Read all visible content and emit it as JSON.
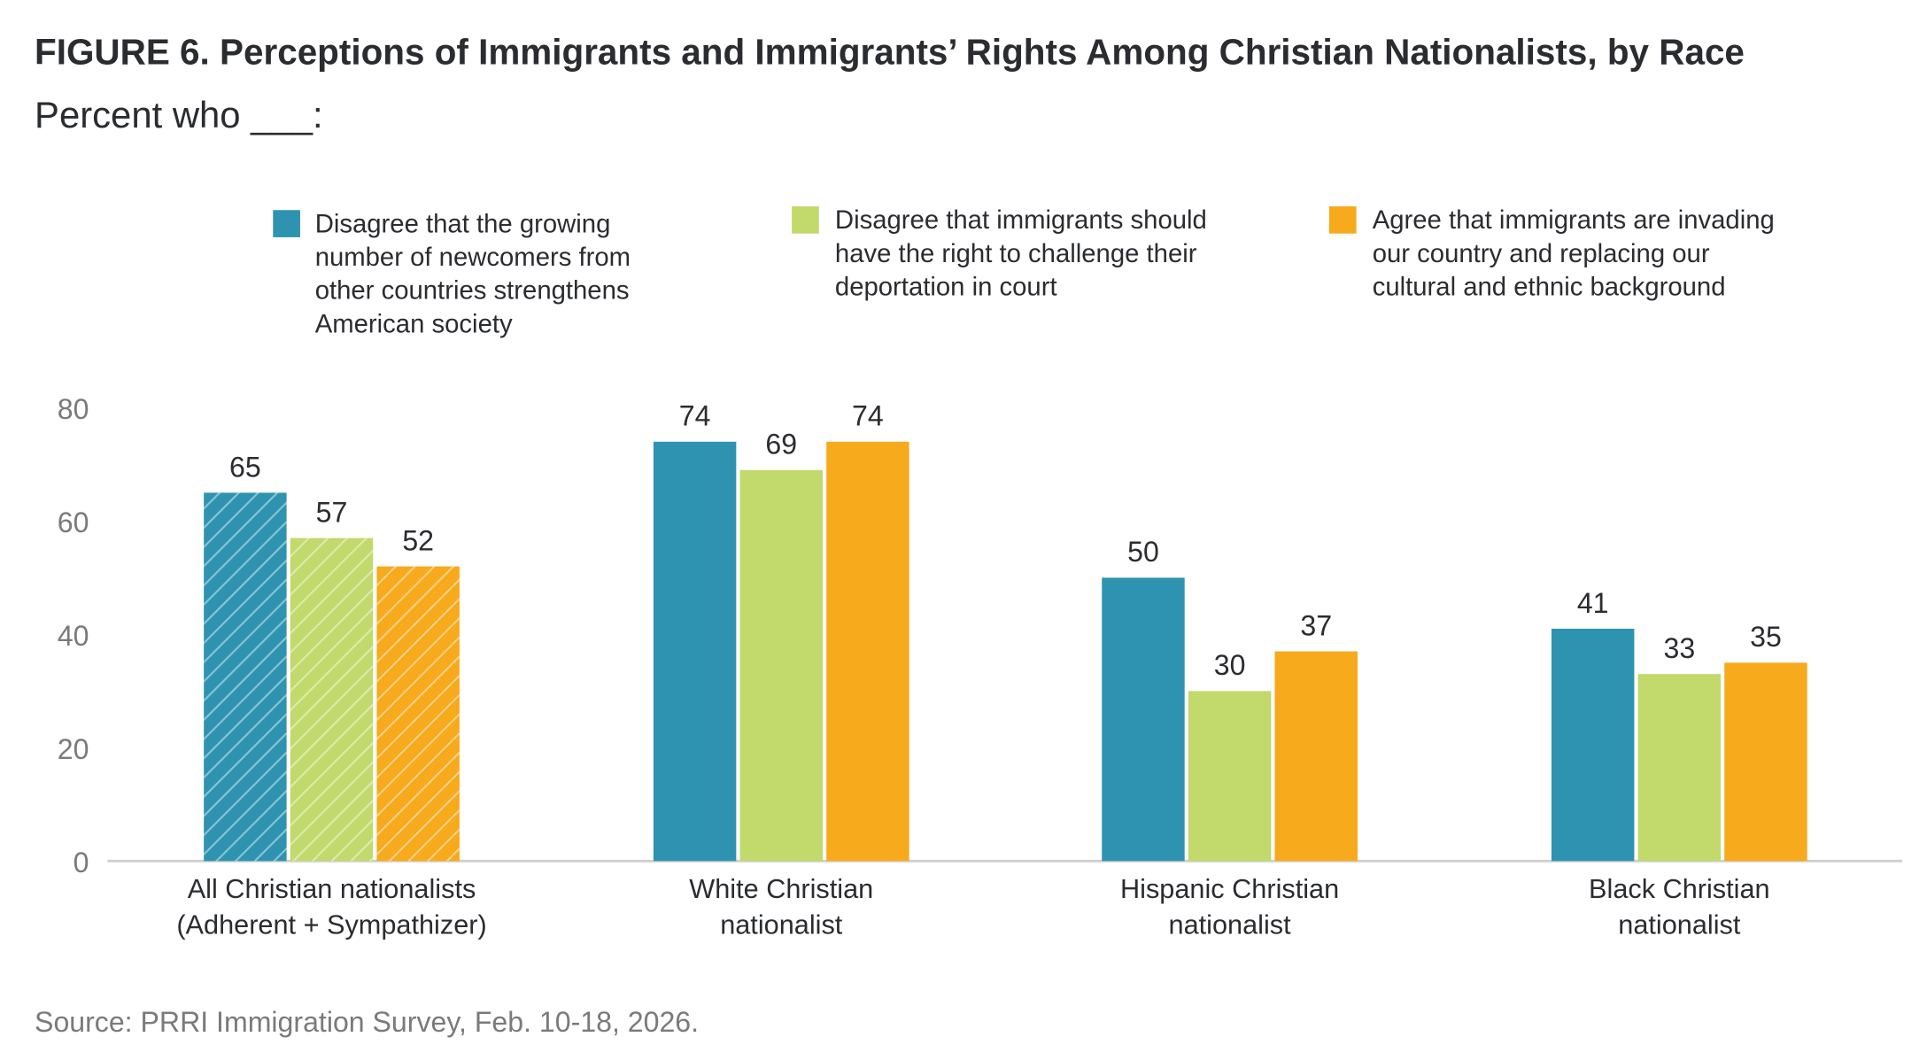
{
  "title": "FIGURE 6.  Perceptions of Immigrants and Immigrants’ Rights Among Christian Nationalists, by Race",
  "subtitle": "Percent who ___:",
  "source": "Source: PRRI Immigration Survey, Feb. 10-18, 2026.",
  "chart_data": {
    "type": "bar",
    "title": "FIGURE 6.  Perceptions of Immigrants and Immigrants’ Rights Among Christian Nationalists, by Race",
    "subtitle": "Percent who ___:",
    "categories": [
      [
        "All Christian nationalists",
        "(Adherent + Sympathizer)"
      ],
      [
        "White Christian",
        "nationalist"
      ],
      [
        "Hispanic Christian",
        "nationalist"
      ],
      [
        "Black Christian",
        "nationalist"
      ]
    ],
    "hatched_categories": [
      0
    ],
    "series": [
      {
        "name": "Disagree that the growing number of newcomers from other countries strengthens American society",
        "legend_lines": [
          "Disagree that the growing",
          "number of newcomers from",
          "other countries strengthens",
          "American society"
        ],
        "color": "#2e93b0",
        "values": [
          65,
          74,
          50,
          41
        ]
      },
      {
        "name": "Disagree that immigrants should have the right to challenge their deportation in court",
        "legend_lines": [
          "Disagree that immigrants should",
          "have the right to challenge their",
          "deportation in court"
        ],
        "color": "#c2d96c",
        "values": [
          57,
          69,
          30,
          33
        ]
      },
      {
        "name": "Agree that immigrants are invading our country and replacing our cultural and ethnic background",
        "legend_lines": [
          "Agree that immigrants are invading",
          "our country and replacing our",
          "cultural and ethnic background"
        ],
        "color": "#f6aa1c",
        "values": [
          52,
          74,
          37,
          35
        ]
      }
    ],
    "yticks": [
      0,
      20,
      40,
      60,
      80
    ],
    "ylim": [
      0,
      80
    ],
    "grid": false,
    "legend_position": "top",
    "xlabel": "",
    "ylabel": ""
  }
}
